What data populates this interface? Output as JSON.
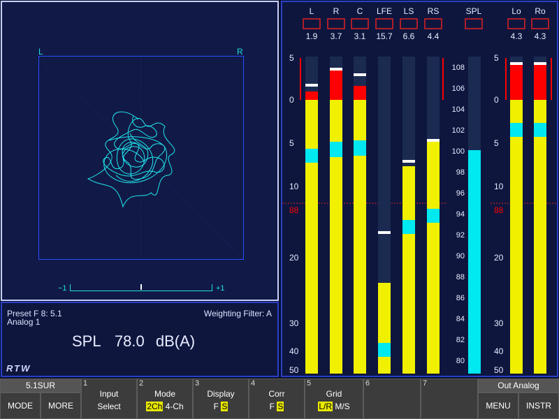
{
  "goniometer": {
    "label_left": "L",
    "label_right": "R",
    "corr_left": "−1",
    "corr_right": "+1",
    "corr_value": 0.0
  },
  "info": {
    "preset": "Preset F 8: 5.1",
    "input": "Analog 1",
    "weighting": "Weighting Filter: A",
    "spl_label": "SPL",
    "spl_value": "78.0",
    "spl_unit": "dB(A)",
    "logo": "RTW"
  },
  "meters": {
    "channels": [
      {
        "name": "L",
        "peak": "1.9"
      },
      {
        "name": "R",
        "peak": "3.7"
      },
      {
        "name": "C",
        "peak": "3.1"
      },
      {
        "name": "LFE",
        "peak": "15.7"
      },
      {
        "name": "LS",
        "peak": "6.6"
      },
      {
        "name": "RS",
        "peak": "4.4"
      }
    ],
    "spl": {
      "name": "SPL"
    },
    "downmix": [
      {
        "name": "Lo",
        "peak": "4.3"
      },
      {
        "name": "Ro",
        "peak": "4.3"
      }
    ],
    "scale_left": [
      "5",
      "0",
      "5",
      "10",
      "88",
      "20",
      "30",
      "40",
      "50"
    ],
    "scale_right": [
      "5",
      "0",
      "5",
      "10",
      "88",
      "20",
      "30",
      "40",
      "50"
    ],
    "spl_scale": [
      "108",
      "106",
      "104",
      "102",
      "100",
      "98",
      "96",
      "94",
      "92",
      "90",
      "88",
      "86",
      "84",
      "82",
      "80"
    ],
    "colors": {
      "yellow": "#f0f000",
      "red": "#ff0000",
      "cyan": "#00e8f0",
      "ref_line": "#e02020"
    }
  },
  "softkeys": {
    "top_left": "5.1SUR",
    "mode": "MODE",
    "more": "MORE",
    "keys": [
      {
        "num": "1",
        "title": "Input",
        "value": "Select"
      },
      {
        "num": "2",
        "title": "Mode",
        "opt_a": "2Ch",
        "opt_b": "4-Ch"
      },
      {
        "num": "3",
        "title": "Display",
        "opt_a": "F",
        "opt_b": "S"
      },
      {
        "num": "4",
        "title": "Corr",
        "opt_a": "F",
        "opt_b": "S"
      },
      {
        "num": "5",
        "title": "Grid",
        "opt_a": "L/R",
        "opt_b": "M/S"
      },
      {
        "num": "6",
        "title": ""
      },
      {
        "num": "7",
        "title": ""
      }
    ],
    "top_right": "Out Analog",
    "menu": "MENU",
    "instr": "INSTR"
  }
}
